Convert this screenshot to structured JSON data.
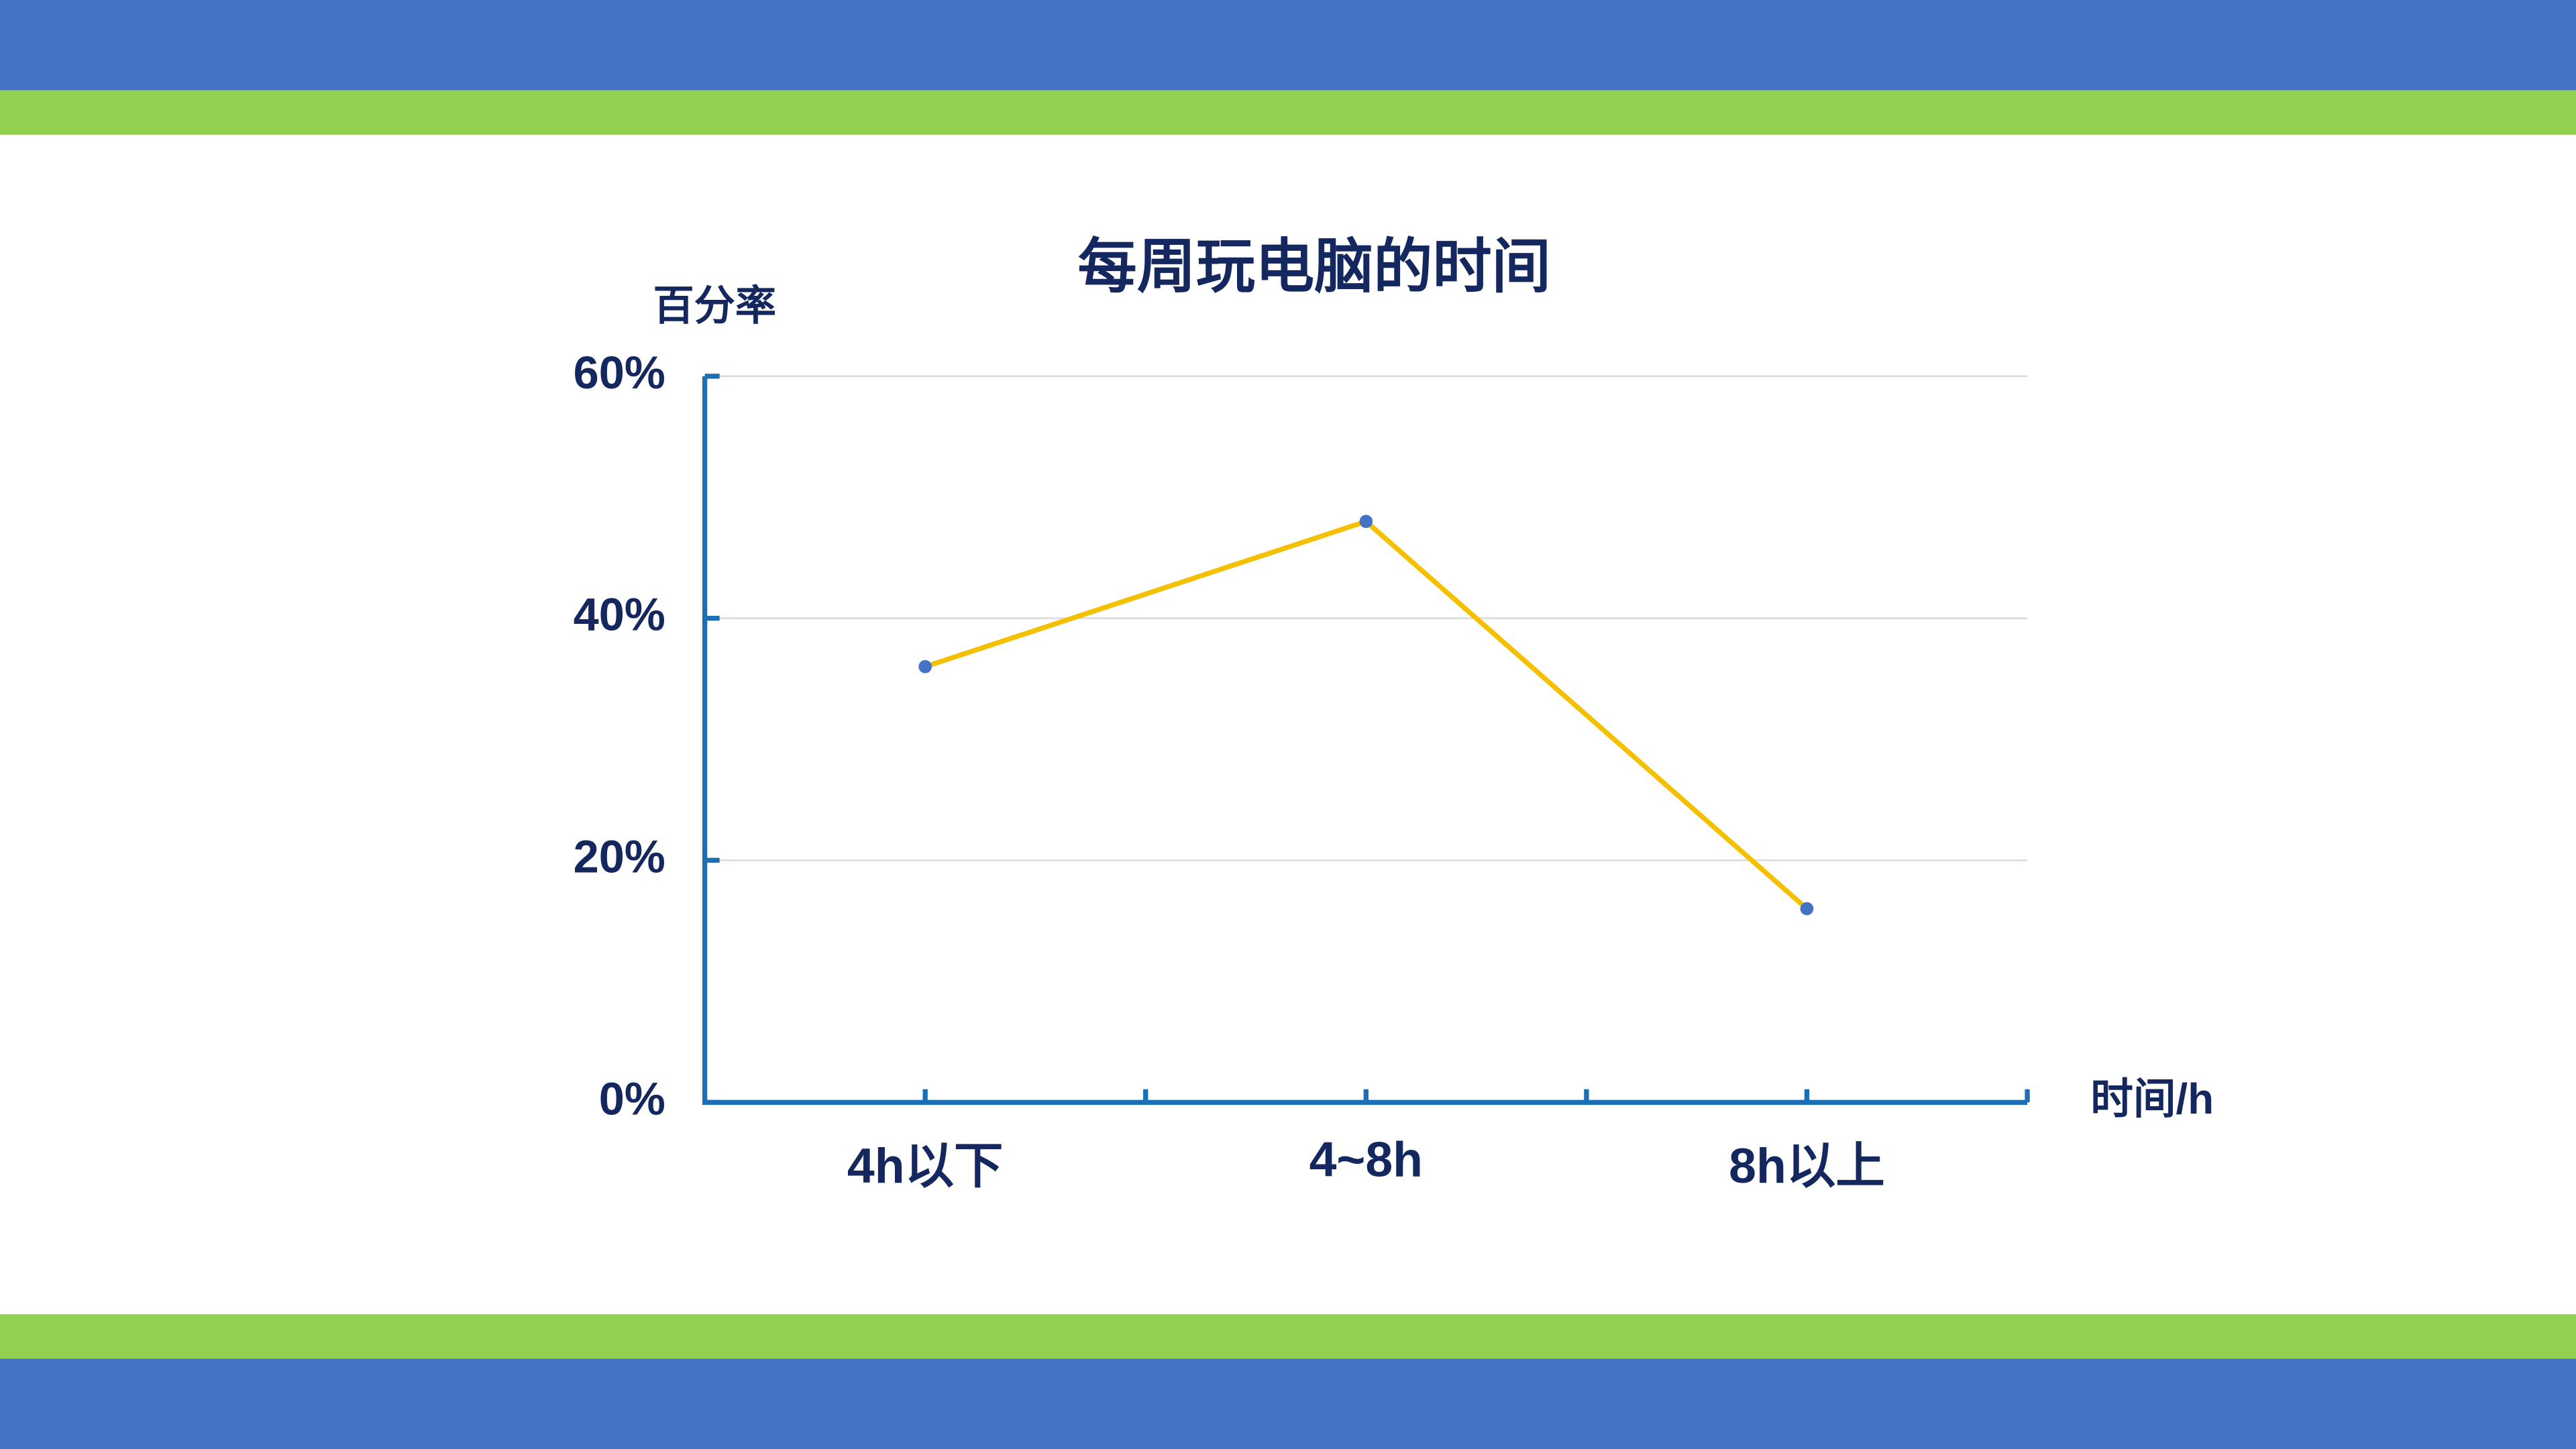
{
  "chart_data": {
    "type": "line",
    "title": "每周玩电脑的时间",
    "y_label": "百分率",
    "x_label": "时间/h",
    "categories": [
      "4h以下",
      "4~8h",
      "8h以上"
    ],
    "series": [
      {
        "name": "百分率",
        "color": "#f5c000",
        "marker_color": "#4472c4",
        "values": [
          36,
          48,
          16
        ]
      }
    ],
    "ylim": [
      0,
      60
    ],
    "yticks": [
      {
        "value": 0,
        "label": "0%"
      },
      {
        "value": 20,
        "label": "20%"
      },
      {
        "value": 40,
        "label": "40%"
      },
      {
        "value": 60,
        "label": "60%"
      }
    ],
    "grid": true,
    "axis_color": "#1a6fb5"
  }
}
